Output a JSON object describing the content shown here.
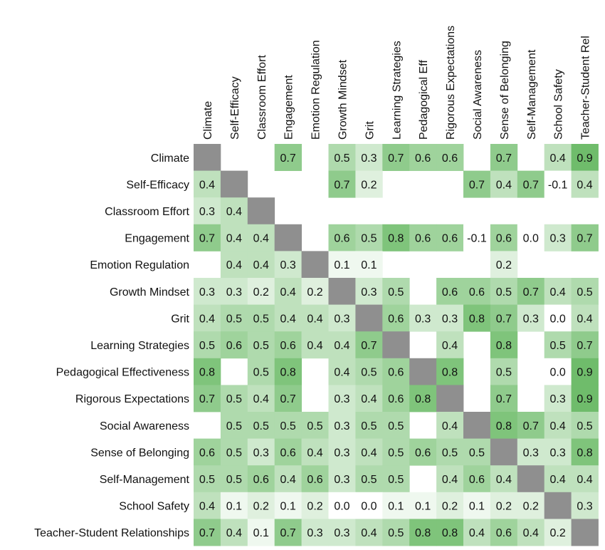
{
  "chart_data": {
    "type": "heatmap",
    "title": "",
    "x_labels": [
      "Climate",
      "Self-Efficacy",
      "Classroom Effort",
      "Engagement",
      "Emotion Regulation",
      "Growth Mindset",
      "Grit",
      "Learning Strategies",
      "Pedagogical Eff",
      "Rigorous Expectations",
      "Social Awareness",
      "Sense of Belonging",
      "Self-Management",
      "School Safety",
      "Teacher-Student Rel"
    ],
    "y_labels": [
      "Climate",
      "Self-Efficacy",
      "Classroom Effort",
      "Engagement",
      "Emotion Regulation",
      "Growth Mindset",
      "Grit",
      "Learning Strategies",
      "Pedagogical Effectiveness",
      "Rigorous Expectations",
      "Social Awareness",
      "Sense of Belonging",
      "Self-Management",
      "School Safety",
      "Teacher-Student Relationships"
    ],
    "values": [
      [
        null,
        null,
        null,
        0.7,
        null,
        0.5,
        0.3,
        0.7,
        0.6,
        0.6,
        null,
        0.7,
        null,
        0.4,
        0.9
      ],
      [
        0.4,
        null,
        null,
        null,
        null,
        0.7,
        0.2,
        null,
        null,
        null,
        0.7,
        0.4,
        0.7,
        -0.1,
        0.4
      ],
      [
        0.3,
        0.4,
        null,
        null,
        null,
        null,
        null,
        null,
        null,
        null,
        null,
        null,
        null,
        null,
        null
      ],
      [
        0.7,
        0.4,
        0.4,
        null,
        null,
        0.6,
        0.5,
        0.8,
        0.6,
        0.6,
        -0.1,
        0.6,
        0.0,
        0.3,
        0.7
      ],
      [
        null,
        0.4,
        0.4,
        0.3,
        null,
        0.1,
        0.1,
        null,
        null,
        null,
        null,
        0.2,
        null,
        null,
        null
      ],
      [
        0.3,
        0.3,
        0.2,
        0.4,
        0.2,
        null,
        0.3,
        0.5,
        null,
        0.6,
        0.6,
        0.5,
        0.7,
        0.4,
        0.5
      ],
      [
        0.4,
        0.5,
        0.5,
        0.4,
        0.4,
        0.3,
        null,
        0.6,
        0.3,
        0.3,
        0.8,
        0.7,
        0.3,
        0.0,
        0.4
      ],
      [
        0.5,
        0.6,
        0.5,
        0.6,
        0.4,
        0.4,
        0.7,
        null,
        null,
        0.4,
        null,
        0.8,
        null,
        0.5,
        0.7
      ],
      [
        0.8,
        null,
        0.5,
        0.8,
        null,
        0.4,
        0.5,
        0.6,
        null,
        0.8,
        null,
        0.5,
        null,
        0.0,
        0.9
      ],
      [
        0.7,
        0.5,
        0.4,
        0.7,
        null,
        0.3,
        0.4,
        0.6,
        0.8,
        null,
        null,
        0.7,
        null,
        0.3,
        0.9
      ],
      [
        null,
        0.5,
        0.5,
        0.5,
        0.5,
        0.3,
        0.5,
        0.5,
        null,
        0.4,
        null,
        0.8,
        0.7,
        0.4,
        0.5
      ],
      [
        0.6,
        0.5,
        0.3,
        0.6,
        0.4,
        0.3,
        0.4,
        0.5,
        0.6,
        0.5,
        0.5,
        null,
        0.3,
        0.3,
        0.8
      ],
      [
        0.5,
        0.5,
        0.6,
        0.4,
        0.6,
        0.3,
        0.5,
        0.5,
        null,
        0.4,
        0.6,
        0.4,
        null,
        0.4,
        0.4
      ],
      [
        0.4,
        0.1,
        0.2,
        0.1,
        0.2,
        0.0,
        0.0,
        0.1,
        0.1,
        0.2,
        0.1,
        0.2,
        0.2,
        null,
        0.3
      ],
      [
        0.7,
        0.4,
        0.1,
        0.7,
        0.3,
        0.3,
        0.4,
        0.5,
        0.8,
        0.8,
        0.4,
        0.6,
        0.4,
        0.2,
        null
      ]
    ],
    "diagonal": "masked",
    "value_range": [
      0,
      1
    ],
    "colors": {
      "low": "#ffffff",
      "high": "#5fb55a",
      "diagonal": "#8f8f8f",
      "text": "#111111"
    }
  }
}
